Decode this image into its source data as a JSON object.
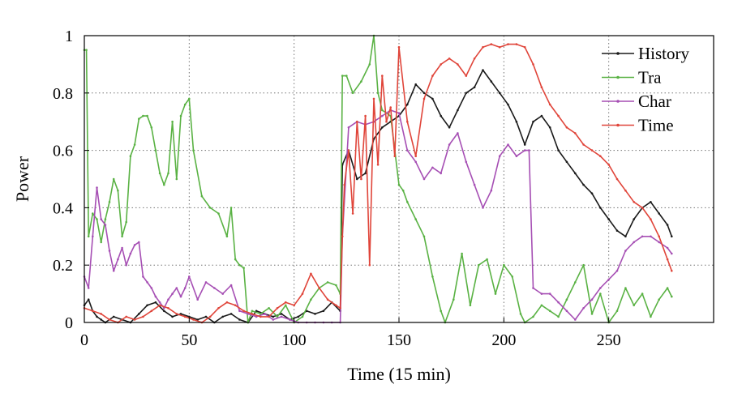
{
  "chart_data": {
    "type": "line",
    "title": "",
    "xlabel": "Time (15 min)",
    "ylabel": "Power",
    "xlim": [
      0,
      300
    ],
    "ylim": [
      0,
      1
    ],
    "xticks": [
      0,
      50,
      100,
      150,
      200,
      250
    ],
    "yticks": [
      0,
      0.2,
      0.4,
      0.6,
      0.8,
      1
    ],
    "ytick_labels": [
      "0",
      "0.2",
      "0.4",
      "0.6",
      "0.8",
      "1"
    ],
    "grid": true,
    "legend_position": "top-right",
    "series": [
      {
        "name": "History",
        "color": "#1a1a1a",
        "x": [
          0,
          2,
          4,
          6,
          8,
          10,
          14,
          18,
          22,
          26,
          30,
          34,
          38,
          42,
          46,
          50,
          54,
          58,
          62,
          66,
          70,
          74,
          78,
          82,
          86,
          90,
          94,
          98,
          102,
          106,
          110,
          114,
          118,
          122,
          123,
          126,
          130,
          134,
          138,
          142,
          146,
          150,
          154,
          158,
          162,
          166,
          170,
          174,
          178,
          182,
          186,
          190,
          194,
          198,
          202,
          206,
          210,
          214,
          218,
          222,
          226,
          230,
          234,
          238,
          242,
          246,
          250,
          254,
          258,
          262,
          266,
          270,
          274,
          278,
          280
        ],
        "values": [
          0.06,
          0.08,
          0.04,
          0.02,
          0.01,
          0.0,
          0.02,
          0.01,
          0.0,
          0.03,
          0.06,
          0.07,
          0.04,
          0.02,
          0.03,
          0.02,
          0.01,
          0.02,
          0.0,
          0.02,
          0.03,
          0.01,
          0.0,
          0.04,
          0.03,
          0.02,
          0.03,
          0.01,
          0.02,
          0.04,
          0.03,
          0.04,
          0.07,
          0.04,
          0.55,
          0.6,
          0.5,
          0.52,
          0.64,
          0.68,
          0.7,
          0.72,
          0.76,
          0.83,
          0.8,
          0.78,
          0.72,
          0.68,
          0.74,
          0.8,
          0.82,
          0.88,
          0.84,
          0.8,
          0.76,
          0.7,
          0.62,
          0.7,
          0.72,
          0.68,
          0.6,
          0.56,
          0.52,
          0.48,
          0.45,
          0.4,
          0.36,
          0.32,
          0.3,
          0.36,
          0.4,
          0.42,
          0.38,
          0.34,
          0.3
        ]
      },
      {
        "name": "Tra",
        "color": "#5ab244",
        "x": [
          0,
          1,
          2,
          4,
          6,
          8,
          10,
          12,
          14,
          16,
          18,
          20,
          22,
          24,
          26,
          28,
          30,
          32,
          34,
          36,
          38,
          40,
          42,
          44,
          46,
          48,
          50,
          52,
          56,
          60,
          64,
          68,
          70,
          72,
          74,
          76,
          78,
          80,
          84,
          88,
          92,
          96,
          100,
          104,
          108,
          112,
          116,
          120,
          122,
          123,
          125,
          128,
          132,
          136,
          138,
          140,
          142,
          146,
          150,
          152,
          154,
          158,
          162,
          166,
          170,
          172,
          176,
          180,
          184,
          188,
          192,
          196,
          200,
          204,
          208,
          210,
          214,
          218,
          222,
          226,
          230,
          234,
          238,
          242,
          246,
          250,
          254,
          258,
          262,
          266,
          270,
          274,
          278,
          280
        ],
        "values": [
          0.95,
          0.95,
          0.3,
          0.38,
          0.36,
          0.28,
          0.36,
          0.42,
          0.5,
          0.46,
          0.3,
          0.35,
          0.58,
          0.62,
          0.71,
          0.72,
          0.72,
          0.68,
          0.6,
          0.52,
          0.48,
          0.52,
          0.7,
          0.5,
          0.72,
          0.76,
          0.78,
          0.6,
          0.44,
          0.4,
          0.38,
          0.3,
          0.4,
          0.22,
          0.2,
          0.19,
          0.0,
          0.04,
          0.03,
          0.05,
          0.02,
          0.06,
          0.0,
          0.02,
          0.08,
          0.12,
          0.14,
          0.13,
          0.1,
          0.86,
          0.86,
          0.8,
          0.84,
          0.9,
          1.0,
          0.8,
          0.74,
          0.72,
          0.48,
          0.46,
          0.42,
          0.36,
          0.3,
          0.16,
          0.04,
          0.0,
          0.08,
          0.24,
          0.06,
          0.2,
          0.22,
          0.1,
          0.2,
          0.16,
          0.03,
          0.0,
          0.02,
          0.06,
          0.04,
          0.02,
          0.08,
          0.14,
          0.2,
          0.03,
          0.1,
          0.0,
          0.04,
          0.12,
          0.06,
          0.1,
          0.02,
          0.08,
          0.12,
          0.09
        ]
      },
      {
        "name": "Char",
        "color": "#a64fb4",
        "x": [
          0,
          2,
          4,
          6,
          8,
          10,
          12,
          14,
          16,
          18,
          20,
          22,
          24,
          26,
          28,
          30,
          32,
          34,
          36,
          38,
          40,
          42,
          44,
          46,
          48,
          50,
          54,
          58,
          62,
          66,
          70,
          74,
          78,
          82,
          86,
          90,
          94,
          98,
          102,
          106,
          110,
          114,
          118,
          122,
          123,
          126,
          130,
          134,
          138,
          142,
          146,
          150,
          154,
          158,
          162,
          166,
          170,
          174,
          178,
          182,
          186,
          190,
          194,
          198,
          202,
          206,
          210,
          212,
          214,
          218,
          222,
          226,
          230,
          234,
          238,
          242,
          246,
          250,
          254,
          258,
          262,
          266,
          270,
          274,
          278,
          280
        ],
        "values": [
          0.16,
          0.12,
          0.3,
          0.47,
          0.36,
          0.34,
          0.25,
          0.18,
          0.22,
          0.26,
          0.2,
          0.24,
          0.27,
          0.28,
          0.16,
          0.14,
          0.12,
          0.09,
          0.07,
          0.05,
          0.08,
          0.1,
          0.12,
          0.09,
          0.12,
          0.16,
          0.08,
          0.14,
          0.12,
          0.1,
          0.13,
          0.04,
          0.03,
          0.02,
          0.03,
          0.01,
          0.02,
          0.01,
          0.0,
          0.0,
          0.0,
          0.0,
          0.0,
          0.0,
          0.3,
          0.68,
          0.7,
          0.69,
          0.7,
          0.72,
          0.74,
          0.73,
          0.6,
          0.56,
          0.5,
          0.54,
          0.52,
          0.62,
          0.66,
          0.56,
          0.48,
          0.4,
          0.46,
          0.58,
          0.62,
          0.58,
          0.6,
          0.6,
          0.12,
          0.1,
          0.1,
          0.07,
          0.04,
          0.01,
          0.05,
          0.08,
          0.12,
          0.15,
          0.18,
          0.25,
          0.28,
          0.3,
          0.3,
          0.28,
          0.26,
          0.24
        ]
      },
      {
        "name": "Time",
        "color": "#e0453a",
        "x": [
          0,
          4,
          8,
          12,
          16,
          20,
          24,
          28,
          32,
          36,
          40,
          44,
          48,
          52,
          56,
          60,
          64,
          68,
          72,
          76,
          80,
          84,
          88,
          92,
          96,
          100,
          104,
          108,
          112,
          116,
          120,
          122,
          123,
          124,
          126,
          128,
          130,
          132,
          134,
          136,
          138,
          140,
          142,
          144,
          146,
          148,
          150,
          154,
          158,
          162,
          166,
          170,
          174,
          178,
          182,
          186,
          190,
          194,
          198,
          202,
          206,
          210,
          214,
          218,
          222,
          226,
          230,
          234,
          238,
          242,
          246,
          250,
          254,
          258,
          262,
          266,
          270,
          274,
          278,
          280
        ],
        "values": [
          0.05,
          0.04,
          0.03,
          0.01,
          0.0,
          0.02,
          0.01,
          0.02,
          0.04,
          0.06,
          0.05,
          0.03,
          0.02,
          0.01,
          0.0,
          0.02,
          0.05,
          0.07,
          0.06,
          0.04,
          0.03,
          0.02,
          0.02,
          0.05,
          0.07,
          0.06,
          0.1,
          0.17,
          0.12,
          0.08,
          0.06,
          0.05,
          0.3,
          0.48,
          0.6,
          0.38,
          0.7,
          0.5,
          0.72,
          0.2,
          0.78,
          0.55,
          0.86,
          0.7,
          0.75,
          0.58,
          0.96,
          0.7,
          0.58,
          0.78,
          0.86,
          0.9,
          0.92,
          0.9,
          0.86,
          0.92,
          0.96,
          0.97,
          0.96,
          0.97,
          0.97,
          0.96,
          0.9,
          0.82,
          0.76,
          0.72,
          0.68,
          0.66,
          0.62,
          0.6,
          0.58,
          0.55,
          0.5,
          0.46,
          0.42,
          0.4,
          0.36,
          0.3,
          0.22,
          0.18
        ]
      }
    ]
  }
}
